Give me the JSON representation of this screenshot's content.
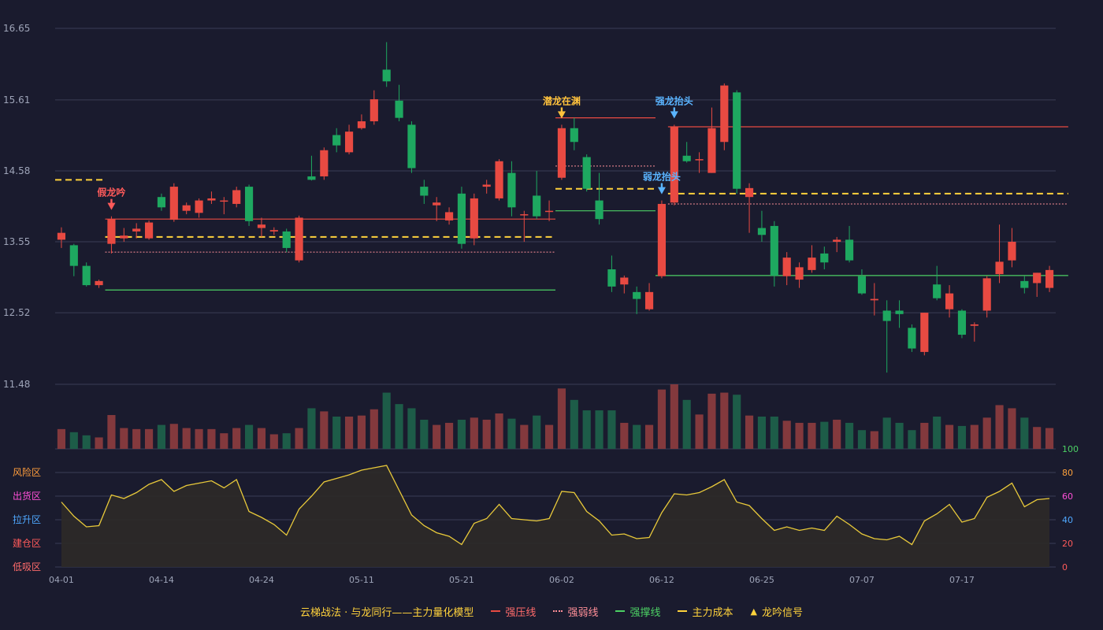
{
  "colors": {
    "background": "#1a1b2e",
    "grid": "#3a3d55",
    "axis_text": "#9ea4b8",
    "up": "#e84a42",
    "down": "#1ea860",
    "vol_up": "#83393d",
    "vol_down": "#1d5c48",
    "pressure": "#e84a42",
    "weak": "#ff8f98",
    "support": "#4cd064",
    "cost": "#ffd23c",
    "osc_line": "#e8c93a",
    "osc_fill": "#2e2a28",
    "signal_fake": "#ff5a5a",
    "signal_dragon": "#ffc23c",
    "signal_blue": "#5ab4ff"
  },
  "chart_data": {
    "type": "candlestick",
    "price_ylim": [
      11.48,
      16.65
    ],
    "price_ticks": [
      "16.65",
      "15.61",
      "14.58",
      "13.55",
      "12.52",
      "11.48"
    ],
    "osc_ticks": [
      "100",
      "80",
      "60",
      "40",
      "20",
      "0"
    ],
    "osc_zones": [
      "风险区",
      "出货区",
      "拉升区",
      "建仓区",
      "低吸区"
    ],
    "date_ticks": [
      {
        "i": 0,
        "label": "04-01"
      },
      {
        "i": 8,
        "label": "04-14"
      },
      {
        "i": 16,
        "label": "04-24"
      },
      {
        "i": 24,
        "label": "05-11"
      },
      {
        "i": 32,
        "label": "05-21"
      },
      {
        "i": 40,
        "label": "06-02"
      },
      {
        "i": 48,
        "label": "06-12"
      },
      {
        "i": 56,
        "label": "06-25"
      },
      {
        "i": 64,
        "label": "07-07"
      },
      {
        "i": 72,
        "label": "07-17"
      }
    ],
    "candles": [
      [
        13.58,
        13.68,
        13.76,
        13.46
      ],
      [
        13.5,
        13.2,
        13.52,
        13.05
      ],
      [
        13.2,
        12.92,
        13.25,
        12.9
      ],
      [
        12.92,
        12.98,
        13.0,
        12.88
      ],
      [
        13.52,
        13.88,
        13.92,
        13.38
      ],
      [
        13.6,
        13.64,
        13.75,
        13.55
      ],
      [
        13.7,
        13.74,
        13.82,
        13.6
      ],
      [
        13.6,
        13.83,
        13.86,
        13.58
      ],
      [
        14.2,
        14.05,
        14.25,
        14.0
      ],
      [
        13.87,
        14.35,
        14.4,
        13.84
      ],
      [
        14.0,
        14.08,
        14.12,
        13.95
      ],
      [
        13.97,
        14.15,
        14.18,
        13.9
      ],
      [
        14.15,
        14.18,
        14.28,
        14.1
      ],
      [
        14.15,
        14.15,
        14.2,
        13.95
      ],
      [
        14.1,
        14.3,
        14.35,
        14.05
      ],
      [
        14.35,
        13.85,
        14.38,
        13.78
      ],
      [
        13.75,
        13.8,
        13.9,
        13.62
      ],
      [
        13.7,
        13.72,
        13.76,
        13.65
      ],
      [
        13.7,
        13.46,
        13.74,
        13.4
      ],
      [
        13.28,
        13.9,
        13.93,
        13.25
      ],
      [
        14.5,
        14.45,
        14.8,
        14.44
      ],
      [
        14.5,
        14.88,
        14.92,
        14.45
      ],
      [
        15.1,
        14.95,
        15.2,
        14.85
      ],
      [
        14.85,
        15.15,
        15.25,
        14.82
      ],
      [
        15.2,
        15.3,
        15.4,
        15.18
      ],
      [
        15.3,
        15.62,
        15.75,
        15.25
      ],
      [
        16.05,
        15.88,
        16.45,
        15.8
      ],
      [
        15.6,
        15.35,
        15.83,
        15.3
      ],
      [
        15.25,
        14.62,
        15.3,
        14.55
      ],
      [
        14.35,
        14.22,
        14.45,
        14.1
      ],
      [
        14.08,
        14.12,
        14.2,
        13.85
      ],
      [
        13.86,
        13.98,
        14.05,
        13.8
      ],
      [
        14.25,
        13.52,
        14.35,
        13.45
      ],
      [
        13.6,
        14.18,
        14.25,
        13.5
      ],
      [
        14.35,
        14.38,
        14.45,
        14.25
      ],
      [
        14.18,
        14.72,
        14.75,
        14.15
      ],
      [
        14.55,
        14.05,
        14.72,
        13.92
      ],
      [
        13.95,
        13.95,
        14.0,
        13.55
      ],
      [
        14.22,
        13.92,
        14.58,
        13.88
      ],
      [
        14.0,
        14.0,
        14.15,
        13.85
      ],
      [
        14.48,
        15.2,
        15.25,
        14.45
      ],
      [
        15.2,
        15.0,
        15.35,
        14.88
      ],
      [
        14.78,
        14.32,
        14.82,
        14.28
      ],
      [
        14.15,
        13.88,
        14.55,
        13.8
      ],
      [
        13.15,
        12.9,
        13.35,
        12.82
      ],
      [
        12.93,
        13.03,
        13.06,
        12.8
      ],
      [
        12.82,
        12.72,
        12.9,
        12.5
      ],
      [
        12.57,
        12.82,
        12.95,
        12.55
      ],
      [
        13.05,
        14.1,
        14.15,
        13.02
      ],
      [
        14.12,
        15.22,
        15.25,
        14.08
      ],
      [
        14.8,
        14.72,
        15.0,
        14.7
      ],
      [
        14.75,
        14.75,
        14.85,
        14.55
      ],
      [
        14.55,
        15.2,
        15.5,
        14.55
      ],
      [
        15.0,
        15.82,
        15.85,
        14.88
      ],
      [
        15.72,
        14.32,
        15.75,
        14.25
      ],
      [
        14.2,
        14.33,
        14.4,
        13.68
      ],
      [
        13.75,
        13.65,
        14.0,
        13.55
      ],
      [
        13.78,
        13.06,
        13.85,
        12.9
      ],
      [
        13.05,
        13.32,
        13.4,
        12.92
      ],
      [
        13.0,
        13.18,
        13.25,
        12.88
      ],
      [
        13.14,
        13.32,
        13.5,
        13.1
      ],
      [
        13.38,
        13.25,
        13.48,
        13.15
      ],
      [
        13.55,
        13.58,
        13.62,
        13.4
      ],
      [
        13.58,
        13.28,
        13.78,
        13.25
      ],
      [
        13.05,
        12.8,
        13.15,
        12.78
      ],
      [
        12.7,
        12.72,
        12.95,
        12.48
      ],
      [
        12.55,
        12.4,
        12.7,
        11.65
      ],
      [
        12.55,
        12.5,
        12.7,
        12.3
      ],
      [
        12.3,
        12.0,
        12.35,
        11.95
      ],
      [
        11.95,
        12.52,
        12.52,
        11.9
      ],
      [
        12.93,
        12.73,
        13.2,
        12.7
      ],
      [
        12.57,
        12.8,
        12.92,
        12.45
      ],
      [
        12.55,
        12.2,
        12.57,
        12.15
      ],
      [
        12.33,
        12.35,
        12.38,
        12.1
      ],
      [
        12.55,
        13.02,
        13.05,
        12.45
      ],
      [
        13.08,
        13.26,
        13.8,
        12.95
      ],
      [
        13.28,
        13.55,
        13.75,
        13.18
      ],
      [
        12.98,
        12.88,
        13.05,
        12.8
      ],
      [
        12.95,
        13.1,
        13.1,
        12.75
      ],
      [
        12.88,
        13.14,
        13.2,
        12.82
      ]
    ],
    "volume": [
      38,
      32,
      26,
      22,
      65,
      40,
      38,
      38,
      46,
      48,
      40,
      38,
      38,
      30,
      40,
      46,
      40,
      28,
      30,
      40,
      78,
      72,
      62,
      62,
      64,
      76,
      108,
      86,
      78,
      56,
      46,
      50,
      56,
      60,
      56,
      68,
      58,
      46,
      64,
      46,
      116,
      94,
      74,
      74,
      74,
      50,
      46,
      46,
      114,
      124,
      94,
      66,
      106,
      108,
      104,
      64,
      62,
      62,
      54,
      50,
      50,
      52,
      56,
      50,
      36,
      34,
      60,
      50,
      36,
      50,
      62,
      46,
      44,
      46,
      60,
      84,
      78,
      60,
      42,
      40
    ],
    "osc": [
      55,
      43,
      34,
      35,
      61,
      58,
      63,
      70,
      74,
      64,
      69,
      71,
      73,
      67,
      74,
      47,
      42,
      36,
      27,
      49,
      60,
      72,
      75,
      78,
      82,
      84,
      86,
      65,
      44,
      35,
      29,
      26,
      19,
      37,
      41,
      53,
      41,
      40,
      39,
      41,
      64,
      63,
      47,
      39,
      27,
      28,
      24,
      25,
      46,
      62,
      61,
      63,
      68,
      74,
      55,
      52,
      41,
      31,
      34,
      31,
      33,
      31,
      43,
      36,
      28,
      24,
      23,
      26,
      19,
      39,
      45,
      53,
      38,
      41,
      59,
      64,
      71,
      51,
      57,
      58
    ],
    "overlays": [
      {
        "kind": "pressure",
        "from": 4,
        "to": 39,
        "value": 13.88
      },
      {
        "kind": "weak",
        "from": 4,
        "to": 39,
        "value": 13.4
      },
      {
        "kind": "support",
        "from": 4,
        "to": 39,
        "value": 12.85
      },
      {
        "kind": "cost",
        "from": 0,
        "to": 3,
        "value": 14.45
      },
      {
        "kind": "cost",
        "from": 4,
        "to": 39,
        "value": 13.62
      },
      {
        "kind": "pressure",
        "from": 40,
        "to": 47,
        "value": 15.35
      },
      {
        "kind": "weak",
        "from": 40,
        "to": 47,
        "value": 14.65
      },
      {
        "kind": "support",
        "from": 40,
        "to": 47,
        "value": 14.0
      },
      {
        "kind": "cost",
        "from": 40,
        "to": 47,
        "value": 14.32
      },
      {
        "kind": "pressure",
        "from": 49,
        "to": 80,
        "value": 15.22
      },
      {
        "kind": "weak",
        "from": 49,
        "to": 80,
        "value": 14.1
      },
      {
        "kind": "support",
        "from": 48,
        "to": 80,
        "value": 13.06
      },
      {
        "kind": "cost",
        "from": 49,
        "to": 80,
        "value": 14.25
      }
    ],
    "signals": [
      {
        "i": 4,
        "label": "假龙吟",
        "color": "#ff5a5a"
      },
      {
        "i": 40,
        "label": "潜龙在渊",
        "color": "#ffc23c"
      },
      {
        "i": 48,
        "label": "弱龙抬头",
        "color": "#5ab4ff"
      },
      {
        "i": 49,
        "label": "强龙抬头",
        "color": "#5ab4ff"
      }
    ]
  },
  "legend": {
    "model_name": "云梯战法 · 与龙同行——主力量化模型",
    "pressure": "强压线",
    "weak": "强弱线",
    "support": "强撑线",
    "cost": "主力成本",
    "signal": "龙吟信号",
    "signal_glyph": "▲"
  }
}
